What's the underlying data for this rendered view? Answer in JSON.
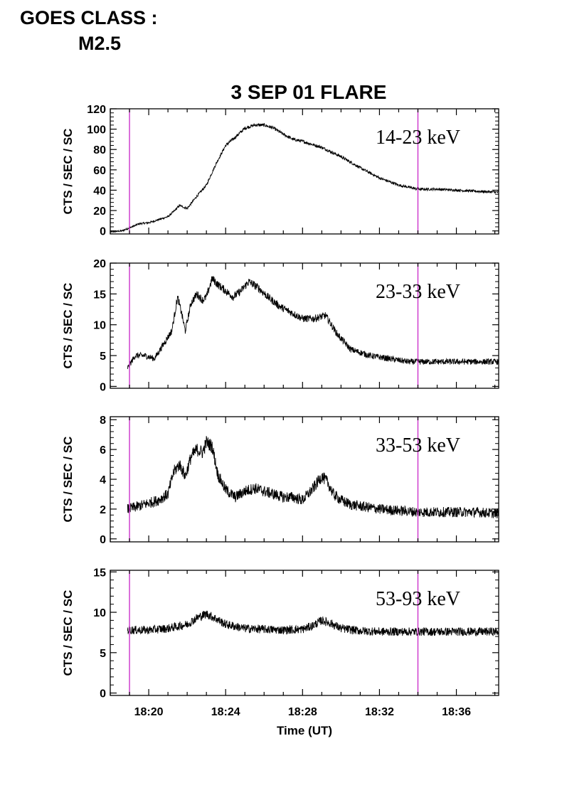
{
  "header": {
    "goes_label": "GOES CLASS :",
    "goes_value": "M2.5"
  },
  "colors": {
    "marker": "#cc33cc",
    "trace": "#000000"
  },
  "chart_data": {
    "type": "line",
    "title": "3 SEP 01 FLARE",
    "xlabel": "Time (UT)",
    "x_unit": "minutes after 18:00 UT",
    "xlim": [
      18.0,
      38.2
    ],
    "x_ticks": [
      20,
      24,
      28,
      32,
      36
    ],
    "x_tick_labels": [
      "18:20",
      "18:24",
      "18:28",
      "18:32",
      "18:36"
    ],
    "markers_x": [
      19.0,
      34.0
    ],
    "panels": [
      {
        "band": "14-23 keV",
        "ylabel": "CTS / SEC / SC",
        "ylim": [
          -3,
          120
        ],
        "y_ticks": [
          0,
          20,
          40,
          60,
          80,
          100,
          120
        ],
        "noise": 1.2,
        "x": [
          18.0,
          18.6,
          19.0,
          19.5,
          20.0,
          20.5,
          21.0,
          21.3,
          21.6,
          22.0,
          22.5,
          23.0,
          23.5,
          24.0,
          24.5,
          25.0,
          25.5,
          26.0,
          26.5,
          27.0,
          27.5,
          28.0,
          29.0,
          30.0,
          31.0,
          32.0,
          33.0,
          34.0,
          35.0,
          36.0,
          37.0,
          38.2
        ],
        "y": [
          -1,
          0,
          3,
          7,
          8,
          11,
          14,
          19,
          25,
          22,
          34,
          45,
          66,
          84,
          92,
          101,
          104,
          104,
          101,
          95,
          90,
          88,
          82,
          73,
          62,
          52,
          45,
          41,
          41,
          40,
          39,
          38
        ]
      },
      {
        "band": "23-33 keV",
        "ylabel": "CTS / SEC / SC",
        "ylim": [
          -0.3,
          20
        ],
        "y_ticks": [
          0,
          5,
          10,
          15,
          20
        ],
        "noise": 0.5,
        "x": [
          18.9,
          19.0,
          19.3,
          19.8,
          20.3,
          20.8,
          21.2,
          21.5,
          21.7,
          21.9,
          22.2,
          22.5,
          22.8,
          23.0,
          23.3,
          23.6,
          24.0,
          24.4,
          24.8,
          25.2,
          25.7,
          26.2,
          26.8,
          27.4,
          28.0,
          28.6,
          29.2,
          29.8,
          30.5,
          31.5,
          32.5,
          33.5,
          34.5,
          35.5,
          36.5,
          38.2
        ],
        "y": [
          3,
          3.5,
          5,
          5,
          4.5,
          7,
          9,
          14.5,
          12,
          9,
          13.5,
          15,
          14,
          14.5,
          17.5,
          16.5,
          15.5,
          14.5,
          15.5,
          17,
          16,
          14.5,
          13,
          12,
          11,
          11,
          11.5,
          8.5,
          6,
          5,
          4.5,
          4,
          4,
          4,
          4,
          4
        ]
      },
      {
        "band": "33-53 keV",
        "ylabel": "CTS / SEC / SC",
        "ylim": [
          -0.2,
          8.2
        ],
        "y_ticks": [
          0,
          2,
          4,
          6,
          8
        ],
        "noise": 0.35,
        "x": [
          18.9,
          19.5,
          20.0,
          20.5,
          21.0,
          21.3,
          21.6,
          21.9,
          22.2,
          22.5,
          22.8,
          23.0,
          23.3,
          23.6,
          24.0,
          24.5,
          25.0,
          25.5,
          26.0,
          26.5,
          27.0,
          27.5,
          28.0,
          28.5,
          29.0,
          29.3,
          29.6,
          30.0,
          30.5,
          31.0,
          32.0,
          33.0,
          34.0,
          35.0,
          36.0,
          37.0,
          38.2
        ],
        "y": [
          2,
          2.2,
          2.4,
          2.6,
          3.0,
          4.5,
          5.0,
          4.2,
          5.5,
          6.0,
          5.8,
          6.5,
          6.2,
          4.3,
          3.3,
          2.8,
          3.2,
          3.4,
          3.2,
          3.0,
          2.8,
          2.8,
          2.6,
          3.3,
          4.2,
          3.8,
          3.0,
          2.6,
          2.3,
          2.2,
          2.0,
          1.9,
          1.8,
          1.8,
          1.8,
          1.8,
          1.7
        ]
      },
      {
        "band": "53-93 keV",
        "ylabel": "CTS / SEC / SC",
        "ylim": [
          -0.3,
          15.2
        ],
        "y_ticks": [
          0,
          5,
          10,
          15
        ],
        "noise": 0.45,
        "x": [
          18.9,
          20.0,
          21.0,
          22.0,
          22.5,
          23.0,
          23.5,
          24.0,
          25.0,
          26.0,
          27.0,
          28.0,
          28.5,
          29.0,
          29.5,
          30.0,
          31.0,
          32.0,
          33.0,
          34.0,
          35.0,
          36.0,
          37.0,
          38.2
        ],
        "y": [
          7.8,
          7.8,
          8.0,
          8.5,
          9.3,
          9.8,
          9.2,
          8.5,
          8.0,
          7.9,
          7.8,
          7.9,
          8.3,
          9.0,
          8.6,
          8.0,
          7.7,
          7.6,
          7.6,
          7.6,
          7.6,
          7.6,
          7.6,
          7.6
        ]
      }
    ]
  }
}
